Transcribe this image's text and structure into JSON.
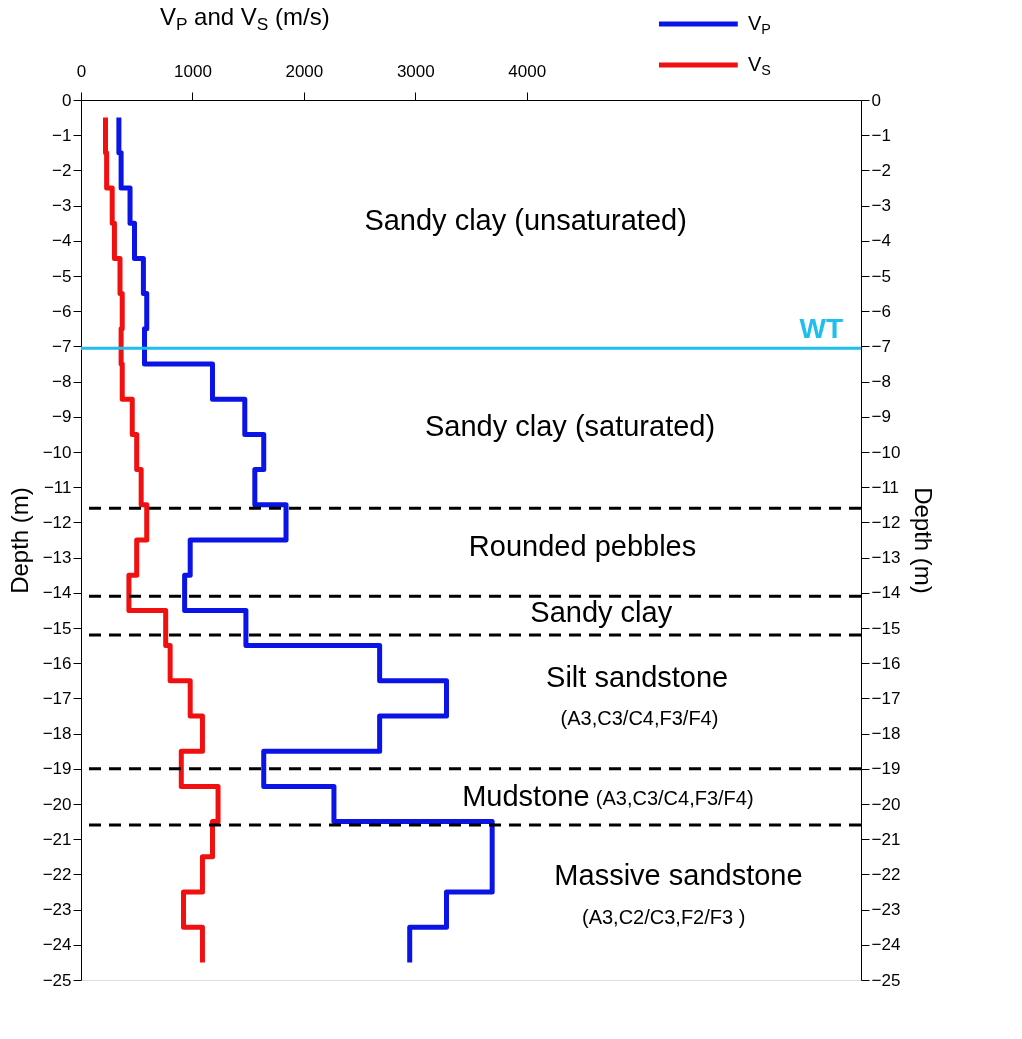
{
  "chart_data": {
    "type": "step",
    "orientation": "horizontal",
    "xlabel": "V$_{P}$ and V$_{S}$ (m/s)",
    "ylabel": "Depth (m)",
    "y2label": "Depth (m)",
    "xlim": [
      0,
      7000
    ],
    "xticks": [
      0,
      1000,
      2000,
      3000,
      4000
    ],
    "ylim": [
      -25,
      0
    ],
    "yticks": [
      0,
      -1,
      -2,
      -3,
      -4,
      -5,
      -6,
      -7,
      -8,
      -9,
      -10,
      -11,
      -12,
      -13,
      -14,
      -15,
      -16,
      -17,
      -18,
      -19,
      -20,
      -21,
      -22,
      -23,
      -24,
      -25
    ],
    "y2lim": [
      -25,
      0
    ],
    "y2ticks": [
      0,
      -1,
      -2,
      -3,
      -4,
      -5,
      -6,
      -7,
      -8,
      -9,
      -10,
      -11,
      -12,
      -13,
      -14,
      -15,
      -16,
      -17,
      -18,
      -19,
      -20,
      -21,
      -22,
      -23,
      -24,
      -25
    ],
    "grid": false,
    "legend": "top right",
    "marker": "none",
    "line_style": "solid",
    "series": [
      {
        "name": "V$_{P}$",
        "color": "#0a14e6",
        "x": [
          -0.5,
          -1.5,
          -2.5,
          -3.5,
          -4.5,
          -5.5,
          -6.5,
          -7.5,
          -8.5,
          -9.5,
          -10.5,
          -11.5,
          -12.5,
          -13.5,
          -14.5,
          -15.5,
          -16.5,
          -17.5,
          -18.5,
          -19.5,
          -20.5,
          -21.5,
          -22.5,
          -23.5,
          -24.5
        ],
        "values": [
          340,
          360,
          440,
          480,
          560,
          590,
          570,
          1180,
          1470,
          1640,
          1560,
          1840,
          980,
          930,
          1480,
          2680,
          3280,
          2680,
          1640,
          2270,
          3690,
          3690,
          3280,
          2950,
          2950
        ]
      },
      {
        "name": "V$_{S}$",
        "color": "#f01010",
        "x": [
          -0.5,
          -1.5,
          -2.5,
          -3.5,
          -4.5,
          -5.5,
          -6.5,
          -7.5,
          -8.5,
          -9.5,
          -10.5,
          -11.5,
          -12.5,
          -13.5,
          -14.5,
          -15.5,
          -16.5,
          -17.5,
          -18.5,
          -19.5,
          -20.5,
          -21.5,
          -22.5,
          -23.5,
          -24.5
        ],
        "values": [
          220,
          230,
          280,
          300,
          350,
          370,
          360,
          370,
          460,
          500,
          540,
          590,
          500,
          430,
          760,
          800,
          980,
          1090,
          900,
          1230,
          1180,
          1090,
          920,
          1090,
          1090
        ]
      }
    ],
    "ref_lines": [
      {
        "axis": "y",
        "value": -7.05,
        "label": "WT",
        "color": "#1ebeee",
        "line_style": "solid"
      },
      {
        "axis": "y",
        "value": -11.6,
        "color": "#000000",
        "line_style": "dashed"
      },
      {
        "axis": "y",
        "value": -14.1,
        "color": "#000000",
        "line_style": "dashed"
      },
      {
        "axis": "y",
        "value": -15.2,
        "color": "#000000",
        "line_style": "dashed"
      },
      {
        "axis": "y",
        "value": -19.0,
        "color": "#000000",
        "line_style": "dashed"
      },
      {
        "axis": "y",
        "value": -20.6,
        "color": "#000000",
        "line_style": "dashed"
      }
    ],
    "annotations": [
      "Sandy clay (unsaturated)",
      "Sandy clay (saturated)",
      "Rounded pebbles",
      "Sandy clay",
      "Silt sandstone",
      "(A3,C3/C4,F3/F4)",
      "Mudstone",
      "(A3,C3/C4,F3/F4)",
      "Massive sandstone",
      "(A3,C2/C3,F2/F3 )"
    ]
  }
}
